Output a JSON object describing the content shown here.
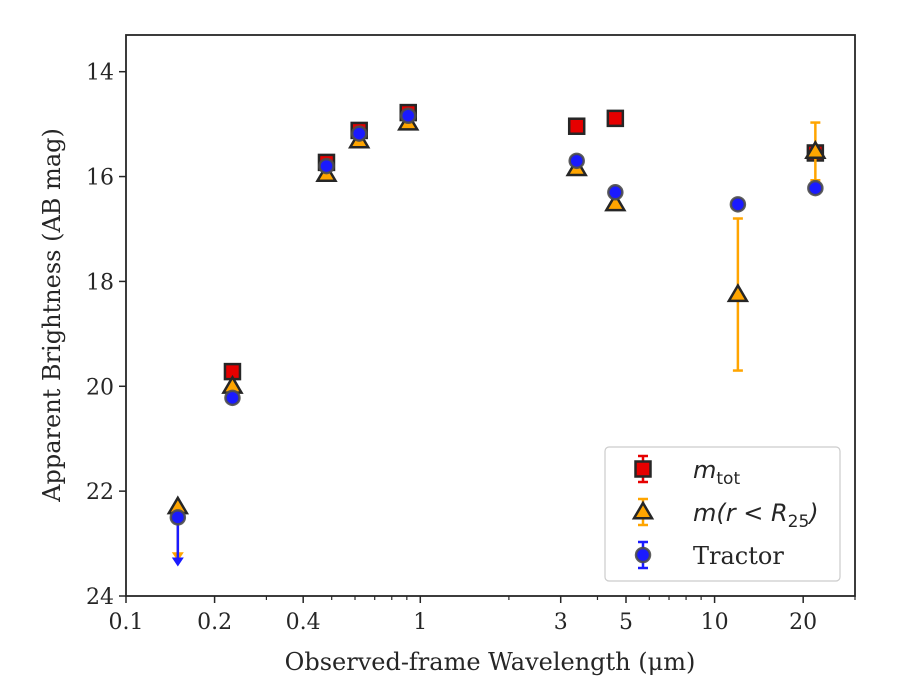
{
  "chart_data": {
    "type": "scatter",
    "title": "",
    "xlabel": "Observed-frame Wavelength (μm)",
    "ylabel": "Apparent Brightness (AB mag)",
    "xscale": "log",
    "xlim": [
      0.1,
      30
    ],
    "ylim": [
      24,
      13.3
    ],
    "y_inverted": true,
    "grid": false,
    "legend_position": "bottom-right",
    "x_ticks": [
      {
        "value": 0.1,
        "label": "0.1"
      },
      {
        "value": 0.2,
        "label": "0.2"
      },
      {
        "value": 0.4,
        "label": "0.4"
      },
      {
        "value": 1,
        "label": "1"
      },
      {
        "value": 3,
        "label": "3"
      },
      {
        "value": 5,
        "label": "5"
      },
      {
        "value": 10,
        "label": "10"
      },
      {
        "value": 20,
        "label": "20"
      }
    ],
    "y_ticks": [
      {
        "value": 14,
        "label": "14"
      },
      {
        "value": 16,
        "label": "16"
      },
      {
        "value": 18,
        "label": "18"
      },
      {
        "value": 20,
        "label": "20"
      },
      {
        "value": 22,
        "label": "22"
      },
      {
        "value": 24,
        "label": "24"
      }
    ],
    "series": [
      {
        "key": "mtot",
        "legend_main": "m",
        "legend_sub": "tot",
        "marker": "square",
        "color": "#e60000",
        "edge_color": "#262626",
        "points": [
          {
            "x": 0.23,
            "y": 19.72
          },
          {
            "x": 0.48,
            "y": 15.73
          },
          {
            "x": 0.62,
            "y": 15.12
          },
          {
            "x": 0.91,
            "y": 14.78
          },
          {
            "x": 3.4,
            "y": 15.04
          },
          {
            "x": 4.6,
            "y": 14.89
          },
          {
            "x": 22,
            "y": 15.55
          }
        ]
      },
      {
        "key": "mr25",
        "legend_main": "m(r < R",
        "legend_sub": "25",
        "legend_end": ")",
        "marker": "triangle",
        "color": "#ffa500",
        "edge_color": "#262626",
        "points": [
          {
            "x": 0.15,
            "y": 22.3,
            "upper_limit": true,
            "arrow_to": 23.3
          },
          {
            "x": 0.23,
            "y": 20.0
          },
          {
            "x": 0.48,
            "y": 15.96
          },
          {
            "x": 0.62,
            "y": 15.32
          },
          {
            "x": 0.91,
            "y": 14.98
          },
          {
            "x": 3.4,
            "y": 15.85
          },
          {
            "x": 4.6,
            "y": 16.52
          },
          {
            "x": 12,
            "y": 18.25,
            "err": 1.45
          },
          {
            "x": 22,
            "y": 15.52,
            "err": 0.55
          }
        ]
      },
      {
        "key": "tractor",
        "legend_main": "Tractor",
        "marker": "circle",
        "color": "#1a1aff",
        "edge_color": "#4d4d4d",
        "points": [
          {
            "x": 0.15,
            "y": 22.5,
            "upper_limit": true,
            "arrow_to": 23.4
          },
          {
            "x": 0.23,
            "y": 20.22
          },
          {
            "x": 0.48,
            "y": 15.8
          },
          {
            "x": 0.62,
            "y": 15.18
          },
          {
            "x": 0.91,
            "y": 14.84
          },
          {
            "x": 3.4,
            "y": 15.7
          },
          {
            "x": 4.6,
            "y": 16.3
          },
          {
            "x": 12,
            "y": 16.53
          },
          {
            "x": 22,
            "y": 16.22
          }
        ]
      }
    ]
  }
}
